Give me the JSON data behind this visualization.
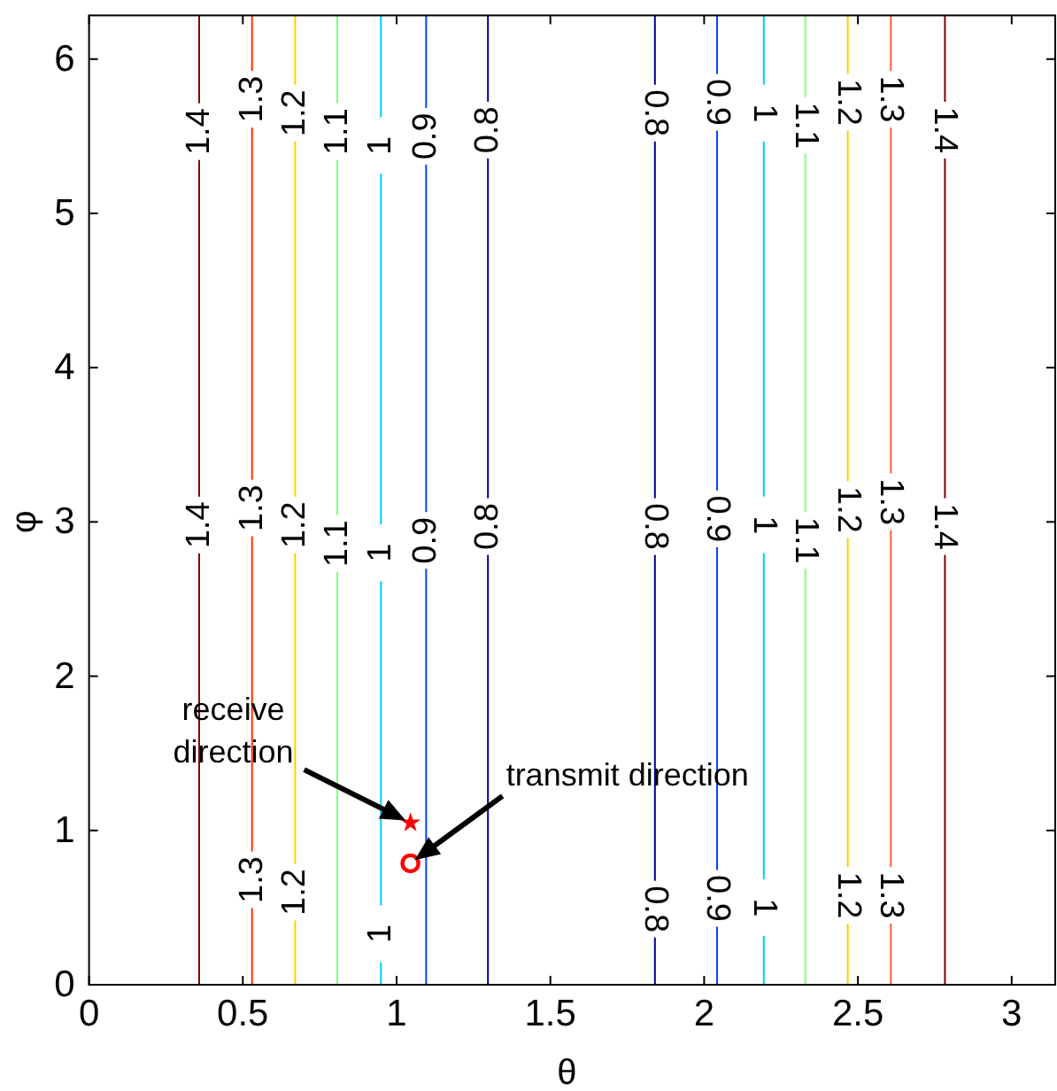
{
  "chart_data": {
    "type": "line",
    "xlabel": "θ",
    "ylabel": "φ",
    "xlim": [
      0,
      3.1416
    ],
    "ylim": [
      0,
      6.2832
    ],
    "xticks": [
      0,
      0.5,
      1,
      1.5,
      2,
      2.5,
      3
    ],
    "yticks": [
      0,
      1,
      2,
      3,
      4,
      5,
      6
    ],
    "grid": false,
    "line_style": "solid",
    "series": [
      {
        "color": "#800000",
        "x": [
          0.358,
          0.358
        ],
        "values": [
          0,
          6.2832
        ]
      },
      {
        "color": "#ff3300",
        "x": [
          0.53,
          0.53
        ],
        "values": [
          0,
          6.2832
        ]
      },
      {
        "color": "#ffcc00",
        "x": [
          0.67,
          0.67
        ],
        "values": [
          0,
          6.2832
        ]
      },
      {
        "color": "#80ff80",
        "x": [
          0.807,
          0.807
        ],
        "values": [
          0,
          6.2832
        ]
      },
      {
        "color": "#00ccff",
        "x": [
          0.949,
          0.949
        ],
        "values": [
          0,
          6.2832
        ]
      },
      {
        "color": "#0044ff",
        "x": [
          1.096,
          1.096
        ],
        "values": [
          0,
          6.2832
        ]
      },
      {
        "color": "#000099",
        "x": [
          1.297,
          1.297
        ],
        "values": [
          0,
          6.2832
        ]
      },
      {
        "color": "#000099",
        "x": [
          1.84,
          1.84
        ],
        "values": [
          0,
          6.2832
        ]
      },
      {
        "color": "#0044ff",
        "x": [
          2.042,
          2.042
        ],
        "values": [
          0,
          6.2832
        ]
      },
      {
        "color": "#00ccff",
        "x": [
          2.194,
          2.194
        ],
        "values": [
          0,
          6.2832
        ]
      },
      {
        "color": "#80ff80",
        "x": [
          2.329,
          2.329
        ],
        "values": [
          0,
          6.2832
        ]
      },
      {
        "color": "#ffcc00",
        "x": [
          2.467,
          2.467
        ],
        "values": [
          0,
          6.2832
        ]
      },
      {
        "color": "#ff6040",
        "x": [
          2.607,
          2.607
        ],
        "values": [
          0,
          6.2832
        ]
      },
      {
        "color": "#800000",
        "x": [
          2.783,
          2.783
        ],
        "values": [
          0,
          6.2832
        ]
      },
      {
        "type": "scatter",
        "color": "#ff0000",
        "marker": "star",
        "x": [
          1.045
        ],
        "values": [
          1.05
        ]
      },
      {
        "type": "scatter",
        "color": "#ff0000",
        "marker": "circle",
        "x": [
          1.045
        ],
        "values": [
          0.787
        ]
      }
    ],
    "annotations": [
      {
        "text": "1.4",
        "x": 0.358,
        "y": 5.53
      },
      {
        "text": "1.3",
        "x": 0.53,
        "y": 5.74
      },
      {
        "text": "1.2",
        "x": 0.67,
        "y": 5.65
      },
      {
        "text": "1.1",
        "x": 0.807,
        "y": 5.53
      },
      {
        "text": "1",
        "x": 0.949,
        "y": 5.44
      },
      {
        "text": "0.9",
        "x": 1.096,
        "y": 5.5
      },
      {
        "text": "0.8",
        "x": 1.297,
        "y": 5.54
      },
      {
        "text": "0.8",
        "x": 1.84,
        "y": 5.65
      },
      {
        "text": "0.9",
        "x": 2.042,
        "y": 5.72
      },
      {
        "text": "1",
        "x": 2.194,
        "y": 5.65
      },
      {
        "text": "1.1",
        "x": 2.329,
        "y": 5.57
      },
      {
        "text": "1.2",
        "x": 2.467,
        "y": 5.72
      },
      {
        "text": "1.3",
        "x": 2.607,
        "y": 5.74
      },
      {
        "text": "1.4",
        "x": 2.783,
        "y": 5.54
      },
      {
        "text": "1.4",
        "x": 0.358,
        "y": 2.98
      },
      {
        "text": "1.3",
        "x": 0.53,
        "y": 3.09
      },
      {
        "text": "1.2",
        "x": 0.67,
        "y": 2.98
      },
      {
        "text": "1.1",
        "x": 0.807,
        "y": 2.86
      },
      {
        "text": "1",
        "x": 0.949,
        "y": 2.8
      },
      {
        "text": "0.9",
        "x": 1.096,
        "y": 2.88
      },
      {
        "text": "0.8",
        "x": 1.297,
        "y": 2.97
      },
      {
        "text": "0.8",
        "x": 1.84,
        "y": 2.97
      },
      {
        "text": "0.9",
        "x": 2.042,
        "y": 3.02
      },
      {
        "text": "1",
        "x": 2.194,
        "y": 2.98
      },
      {
        "text": "1.1",
        "x": 2.329,
        "y": 2.88
      },
      {
        "text": "1.2",
        "x": 2.467,
        "y": 3.08
      },
      {
        "text": "1.3",
        "x": 2.607,
        "y": 3.13
      },
      {
        "text": "1.4",
        "x": 2.783,
        "y": 2.97
      },
      {
        "text": "1.3",
        "x": 0.53,
        "y": 0.68
      },
      {
        "text": "1.2",
        "x": 0.67,
        "y": 0.6
      },
      {
        "text": "1",
        "x": 0.949,
        "y": 0.33
      },
      {
        "text": "0.8",
        "x": 1.84,
        "y": 0.49
      },
      {
        "text": "0.9",
        "x": 2.042,
        "y": 0.56
      },
      {
        "text": "1",
        "x": 2.194,
        "y": 0.5
      },
      {
        "text": "1.2",
        "x": 2.467,
        "y": 0.58
      },
      {
        "text": "1.3",
        "x": 2.607,
        "y": 0.58
      },
      "receive direction",
      "transmit direction"
    ]
  }
}
